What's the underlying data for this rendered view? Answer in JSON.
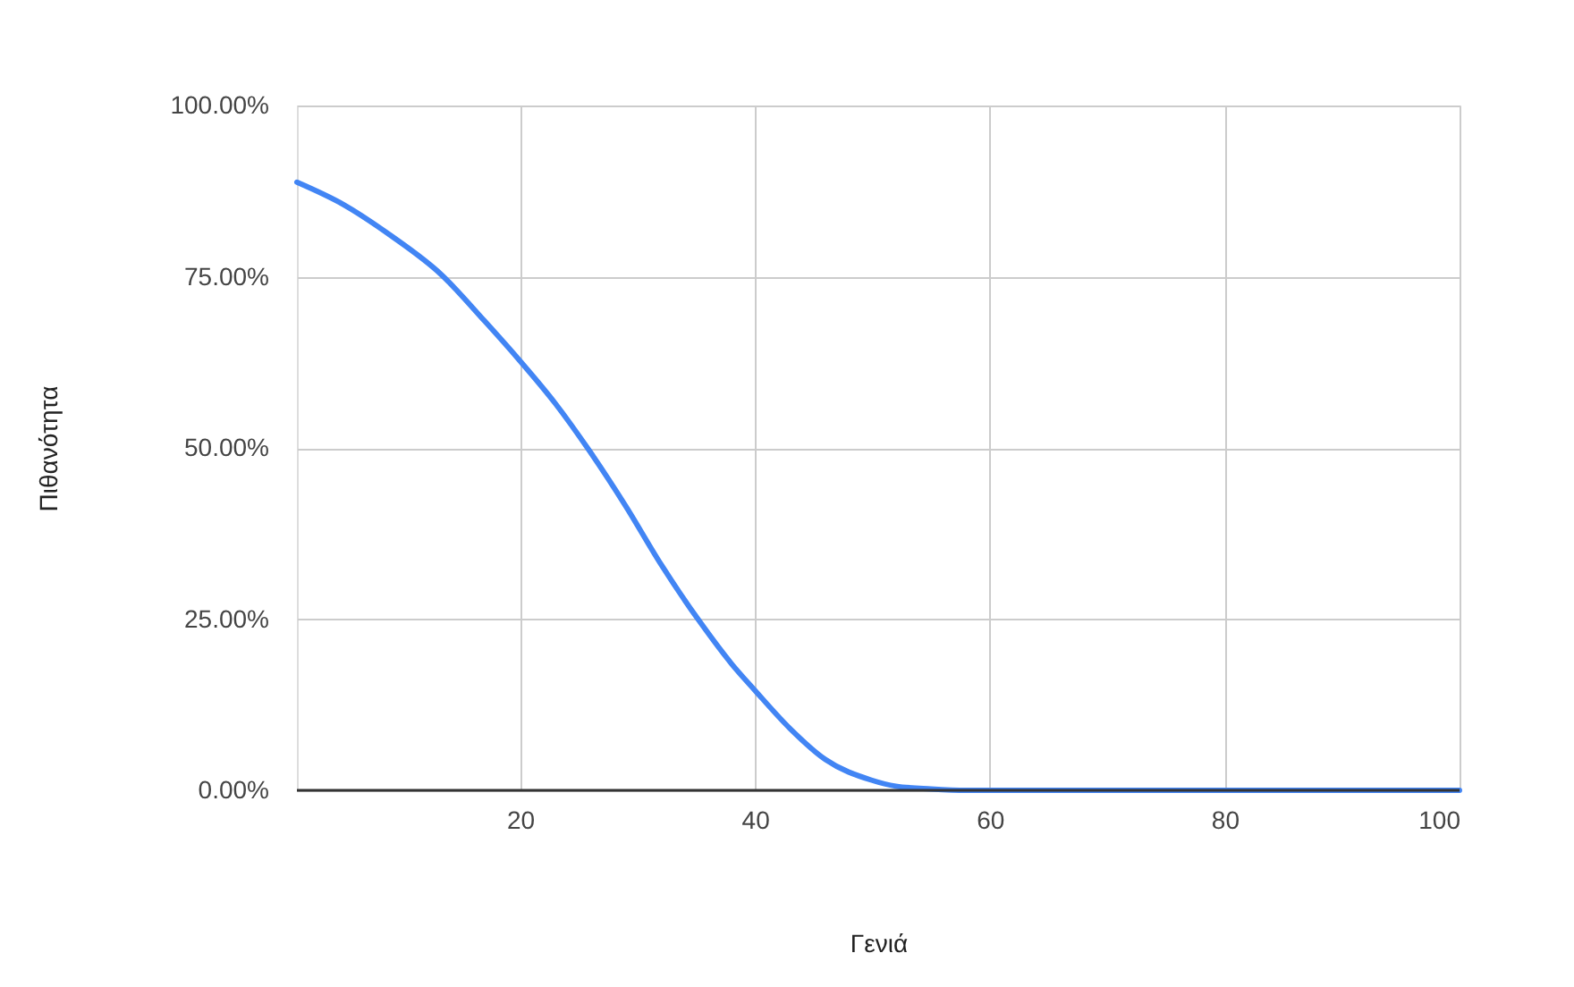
{
  "chart_data": {
    "type": "line",
    "xlabel": "Γενιά",
    "ylabel": "Πιθανότητα",
    "x": [
      1,
      5,
      9,
      13.3,
      17,
      20,
      23,
      25.9,
      29,
      32,
      35.4,
      38,
      40,
      43,
      46,
      49.9,
      52,
      55,
      58,
      60,
      70,
      80,
      90,
      100
    ],
    "series": [
      {
        "color": "#4285f4",
        "values": [
          88.8,
          85.5,
          81,
          75.3,
          68.5,
          62.7,
          56.5,
          49.6,
          41.5,
          33,
          24.4,
          18.5,
          14.6,
          9,
          4.5,
          1.5,
          0.6,
          0.2,
          0,
          0,
          0,
          0,
          0,
          0
        ]
      }
    ],
    "xlim": [
      1,
      100
    ],
    "xticks": [
      20,
      40,
      60,
      80,
      100
    ],
    "ylim": [
      0,
      100
    ],
    "yticks": [
      {
        "value": 0,
        "label": "0.00%"
      },
      {
        "value": 25,
        "label": "25.00%"
      },
      {
        "value": 50,
        "label": "50.00%"
      },
      {
        "value": 75,
        "label": "75.00%"
      },
      {
        "value": 100,
        "label": "100.00%"
      }
    ],
    "grid": true,
    "marker": "none",
    "line_style": "solid"
  }
}
